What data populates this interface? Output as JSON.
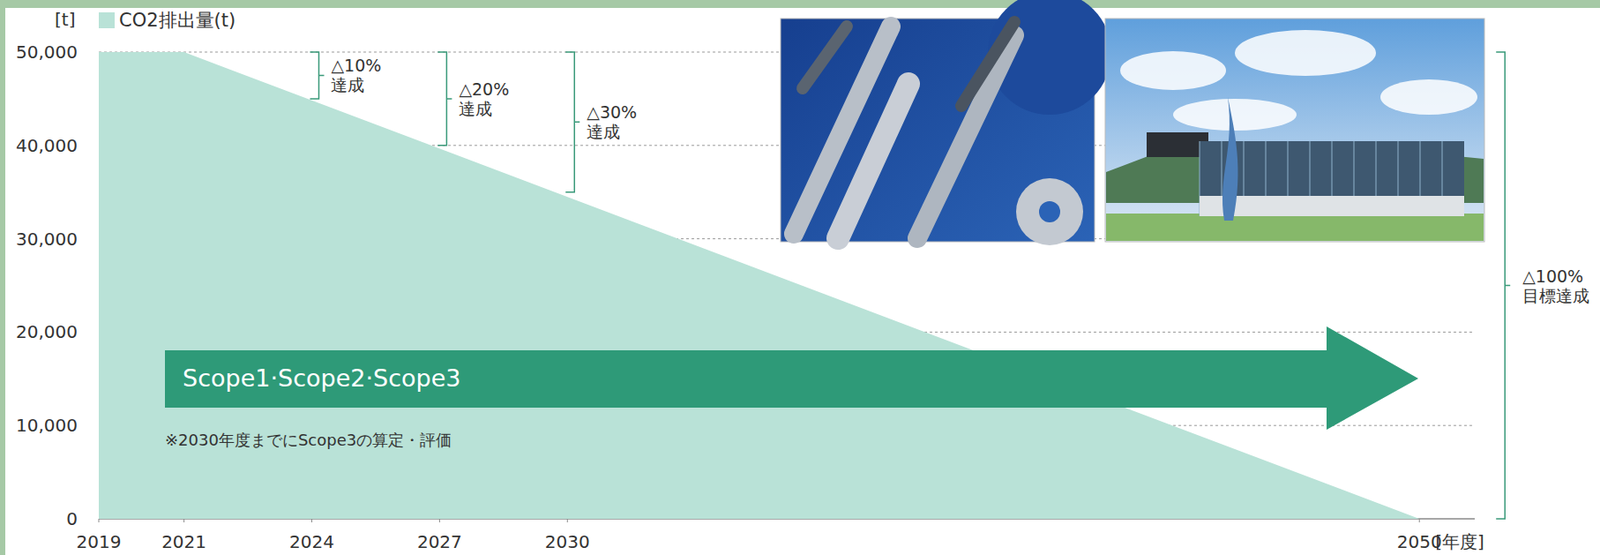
{
  "chart_data": {
    "type": "area",
    "x": [
      2019,
      2021,
      2050
    ],
    "series": [
      {
        "name": "CO2排出量(t)",
        "color": "#b9e2d7",
        "values": [
          50000,
          50000,
          0
        ]
      }
    ],
    "xlim": [
      2019,
      2051.3
    ],
    "xticks": [
      2019,
      2021,
      2024,
      2027,
      2030,
      2050
    ],
    "ylim": [
      0,
      50000
    ],
    "yticks": [
      0,
      {
        "value": 10000,
        "label": "10,000"
      },
      {
        "value": 20000,
        "label": "20,000"
      },
      {
        "value": 30000,
        "label": "30,000"
      },
      {
        "value": 40000,
        "label": "40,000"
      },
      {
        "value": 50000,
        "label": "50,000"
      }
    ],
    "grid": true,
    "legend": "top-left",
    "x_label": "[年度]",
    "y_label": "[t]",
    "annotations": [
      {
        "lines": [
          "△10%",
          "達成"
        ],
        "x": 2024,
        "from": 50000,
        "to": 45000
      },
      {
        "lines": [
          "△20%",
          "達成"
        ],
        "x": 2027,
        "from": 50000,
        "to": 40000
      },
      {
        "lines": [
          "△30%",
          "達成"
        ],
        "x": 2030,
        "from": 50000,
        "to": 35000
      },
      {
        "lines": [
          "△100%",
          "目標達成"
        ],
        "x": 2050,
        "from": 50000,
        "to": 0
      }
    ],
    "arrow_label": "Scope1·Scope2·Scope3",
    "note": "※2030年度までにScope3の算定・評価"
  }
}
